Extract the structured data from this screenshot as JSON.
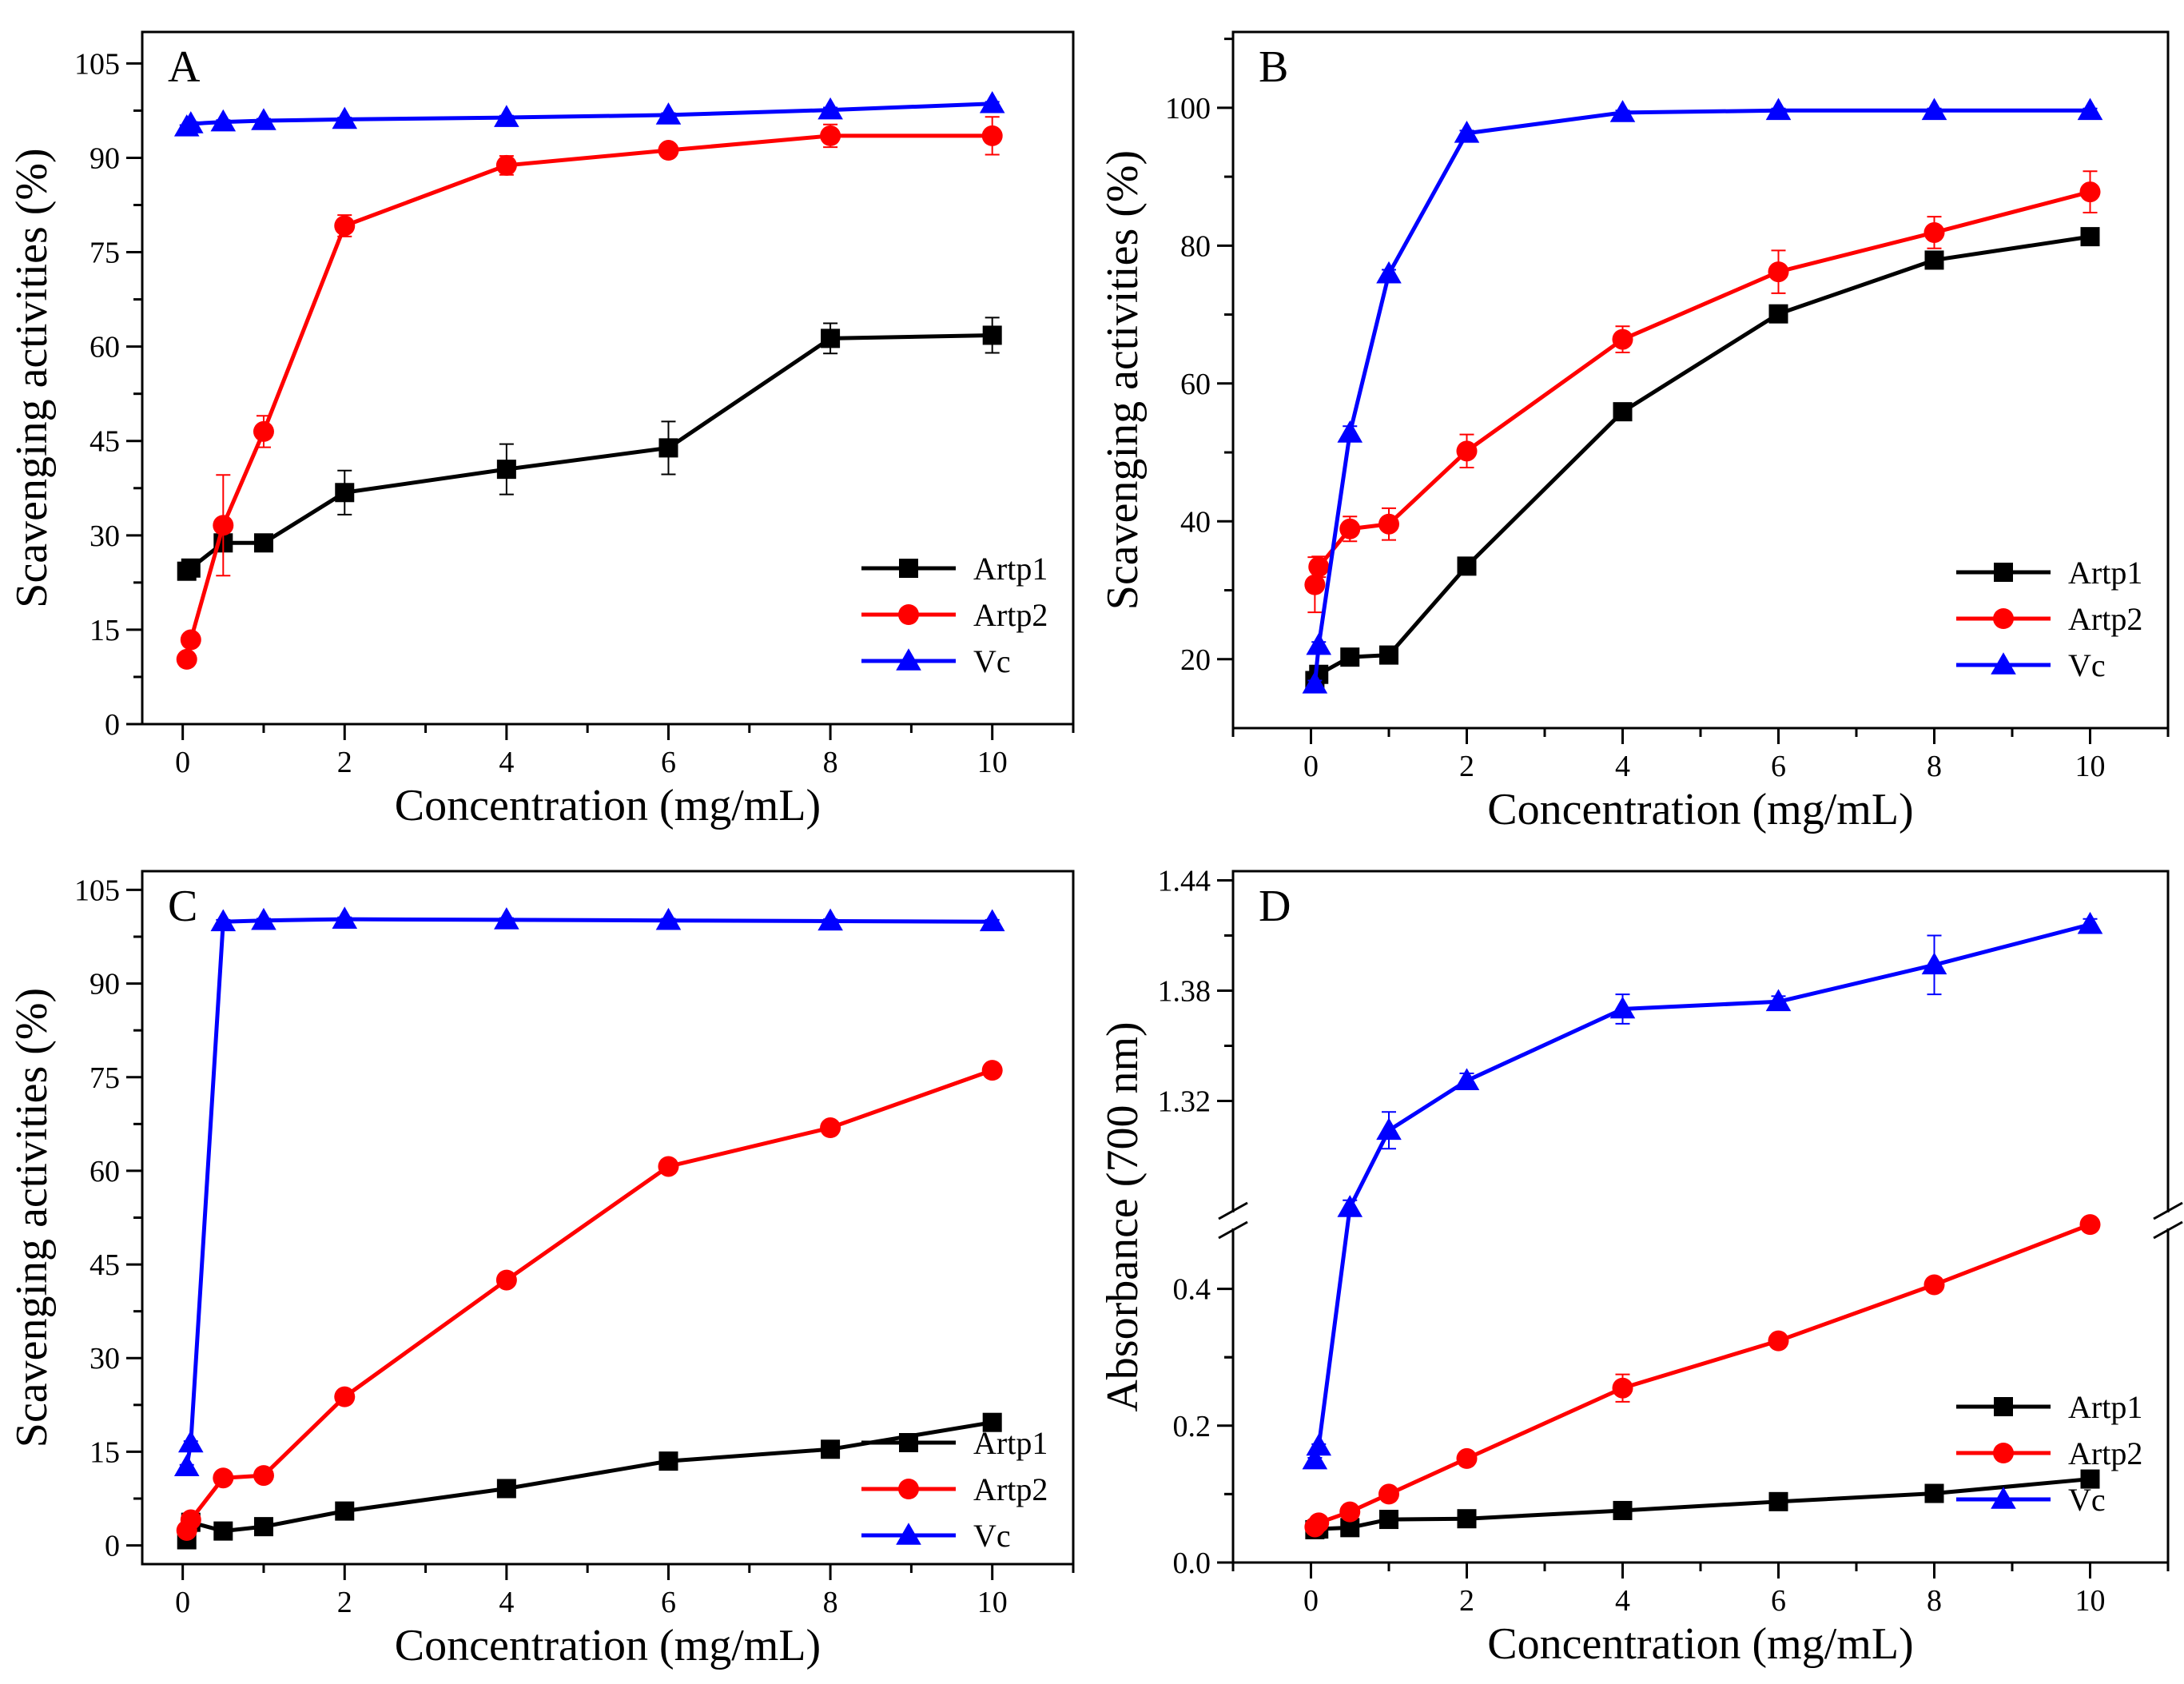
{
  "chart_data": [
    {
      "type": "line",
      "panel_label": "A",
      "xlabel": "Concentration (mg/mL)",
      "ylabel": "Scavenging activities (%)",
      "xlim": [
        -0.5,
        11
      ],
      "ylim": [
        0,
        110
      ],
      "x_ticks": [
        0,
        2,
        4,
        6,
        8,
        10
      ],
      "y_ticks": [
        0,
        15,
        30,
        45,
        60,
        75,
        90,
        105
      ],
      "legend_position": "bottom-right",
      "x": [
        0.05,
        0.1,
        0.5,
        1,
        2,
        4,
        6,
        8,
        10
      ],
      "series": [
        {
          "name": "Artp1",
          "color": "#000000",
          "marker": "square",
          "values": [
            24.3,
            24.8,
            28.8,
            28.8,
            36.8,
            40.5,
            43.9,
            61.3,
            61.8
          ],
          "errors": [
            0.8,
            0.8,
            0.8,
            0.8,
            3.5,
            4.0,
            4.2,
            2.4,
            2.8
          ]
        },
        {
          "name": "Artp2",
          "color": "#ff0000",
          "marker": "circle",
          "values": [
            10.3,
            13.4,
            31.6,
            46.5,
            79.2,
            88.8,
            91.2,
            93.5,
            93.5
          ],
          "errors": [
            0.4,
            0.5,
            8.0,
            2.5,
            1.7,
            1.5,
            0.8,
            1.8,
            3.0
          ]
        },
        {
          "name": "Vc",
          "color": "#0000ff",
          "marker": "triangle",
          "values": [
            94.9,
            95.4,
            95.7,
            95.9,
            96.1,
            96.4,
            96.8,
            97.6,
            98.6
          ],
          "errors": [
            0.3,
            0.3,
            0.3,
            0.3,
            0.3,
            0.3,
            0.3,
            0.4,
            0.3
          ]
        }
      ]
    },
    {
      "type": "line",
      "panel_label": "B",
      "xlabel": "Concentration (mg/mL)",
      "ylabel": "Scavenging activities (%)",
      "xlim": [
        -1,
        11
      ],
      "ylim": [
        10,
        111
      ],
      "x_ticks": [
        0,
        2,
        4,
        6,
        8,
        10
      ],
      "y_ticks": [
        20,
        40,
        60,
        80,
        100
      ],
      "legend_position": "bottom-right",
      "x": [
        0.05,
        0.1,
        0.5,
        1,
        2,
        4,
        6,
        8,
        10
      ],
      "series": [
        {
          "name": "Artp1",
          "color": "#000000",
          "marker": "square",
          "values": [
            16.9,
            17.8,
            20.3,
            20.6,
            33.5,
            55.9,
            70.1,
            77.9,
            81.3
          ],
          "errors": [
            0.5,
            0.5,
            1.0,
            0.6,
            0.6,
            0.6,
            0.6,
            0.6,
            0.6
          ]
        },
        {
          "name": "Artp2",
          "color": "#ff0000",
          "marker": "circle",
          "values": [
            30.8,
            33.4,
            38.9,
            39.6,
            50.2,
            66.4,
            76.2,
            81.9,
            87.8
          ],
          "errors": [
            4.0,
            1.5,
            1.8,
            2.3,
            2.4,
            1.9,
            3.1,
            2.3,
            3.0
          ]
        },
        {
          "name": "Vc",
          "color": "#0000ff",
          "marker": "triangle",
          "values": [
            16.4,
            22.0,
            52.8,
            75.9,
            96.3,
            99.3,
            99.6,
            99.6,
            99.6
          ],
          "errors": [
            0.5,
            0.5,
            1.0,
            0.6,
            0.4,
            0.3,
            0.3,
            0.3,
            0.3
          ]
        }
      ]
    },
    {
      "type": "line",
      "panel_label": "C",
      "xlabel": "Concentration (mg/mL)",
      "ylabel": "Scavenging activities (%)",
      "xlim": [
        -0.5,
        11
      ],
      "ylim": [
        -3,
        108
      ],
      "x_ticks": [
        0,
        2,
        4,
        6,
        8,
        10
      ],
      "y_ticks": [
        0,
        15,
        30,
        45,
        60,
        75,
        90,
        105
      ],
      "legend_position": "bottom-right",
      "x": [
        0.05,
        0.1,
        0.5,
        1,
        2,
        4,
        6,
        8,
        10
      ],
      "series": [
        {
          "name": "Artp1",
          "color": "#000000",
          "marker": "square",
          "values": [
            0.9,
            3.7,
            2.3,
            3.0,
            5.5,
            9.1,
            13.5,
            15.4,
            19.7
          ],
          "errors": [
            0.3,
            0.3,
            0.3,
            0.3,
            0.3,
            0.3,
            0.3,
            0.3,
            0.3
          ]
        },
        {
          "name": "Artp2",
          "color": "#ff0000",
          "marker": "circle",
          "values": [
            2.4,
            4.1,
            10.8,
            11.2,
            23.8,
            42.5,
            60.7,
            66.9,
            76.1
          ],
          "errors": [
            0.3,
            0.3,
            0.4,
            0.4,
            0.4,
            0.4,
            0.4,
            0.4,
            0.4
          ]
        },
        {
          "name": "Vc",
          "color": "#0000ff",
          "marker": "triangle",
          "values": [
            12.6,
            16.4,
            99.9,
            100.1,
            100.3,
            100.2,
            100.1,
            100.0,
            99.9
          ],
          "errors": [
            0.3,
            0.3,
            0.3,
            0.3,
            0.3,
            0.3,
            0.3,
            0.3,
            0.3
          ]
        }
      ]
    },
    {
      "type": "line",
      "panel_label": "D",
      "xlabel": "Concentration (mg/mL)",
      "ylabel": "Absorbance (700 nm)",
      "xlim": [
        -1,
        11
      ],
      "axis_break": true,
      "lower_ylim": [
        0,
        0.5
      ],
      "upper_ylim": [
        1.255,
        1.445
      ],
      "lower_y_ticks": [
        0.0,
        0.2,
        0.4
      ],
      "upper_y_ticks": [
        1.32,
        1.38,
        1.44
      ],
      "x_ticks": [
        0,
        2,
        4,
        6,
        8,
        10
      ],
      "legend_position": "bottom-right",
      "x": [
        0.05,
        0.1,
        0.5,
        1,
        2,
        4,
        6,
        8,
        10
      ],
      "series": [
        {
          "name": "Artp1",
          "color": "#000000",
          "marker": "square",
          "values": [
            0.048,
            0.049,
            0.051,
            0.063,
            0.064,
            0.076,
            0.089,
            0.101,
            0.122
          ],
          "errors": [
            0.002,
            0.002,
            0.002,
            0.002,
            0.002,
            0.002,
            0.002,
            0.002,
            0.002
          ]
        },
        {
          "name": "Artp2",
          "color": "#ff0000",
          "marker": "circle",
          "values": [
            0.052,
            0.058,
            0.074,
            0.1,
            0.152,
            0.255,
            0.324,
            0.406,
            0.494
          ],
          "errors": [
            0.002,
            0.002,
            0.002,
            0.003,
            0.003,
            0.02,
            0.003,
            0.003,
            0.003
          ]
        },
        {
          "name": "Vc",
          "color": "#0000ff",
          "marker": "triangle",
          "values": [
            0.15,
            0.17,
            1.262,
            1.304,
            1.331,
            1.37,
            1.374,
            1.394,
            1.416
          ],
          "errors": [
            0.003,
            0.003,
            0.004,
            0.01,
            0.004,
            0.008,
            0.003,
            0.016,
            0.003
          ]
        }
      ]
    }
  ]
}
